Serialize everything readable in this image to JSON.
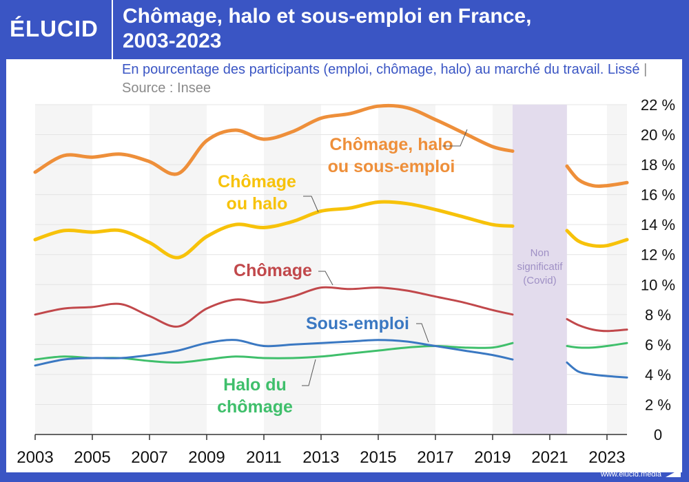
{
  "header": {
    "logo_text": "ÉLUCID",
    "title": "Chômage, halo et sous-emploi en France,\n2003-2023",
    "subtitle": "En pourcentage des participants (emploi, chômage, halo) au marché du travail. Lissé",
    "subtitle_sep": "|",
    "source": "Source : Insee"
  },
  "footer": {
    "url": "www.elucid.media"
  },
  "colors": {
    "brand_blue": "#3a55c4",
    "orange": "#ee8f3a",
    "yellow": "#f7c20a",
    "red": "#c1484b",
    "blue": "#3a78c2",
    "green": "#3fbf6b",
    "covid": "#e3dced",
    "covid_text": "#9f90c5"
  },
  "chart_data": {
    "type": "line",
    "x_range": [
      2003,
      2023.7
    ],
    "ylim": [
      0,
      22
    ],
    "y_ticks": [
      {
        "value": 0,
        "label": "0"
      },
      {
        "value": 2,
        "label": "2 %"
      },
      {
        "value": 4,
        "label": "4 %"
      },
      {
        "value": 6,
        "label": "6 %"
      },
      {
        "value": 8,
        "label": "8 %"
      },
      {
        "value": 10,
        "label": "10 %"
      },
      {
        "value": 12,
        "label": "12 %"
      },
      {
        "value": 14,
        "label": "14 %"
      },
      {
        "value": 16,
        "label": "16 %"
      },
      {
        "value": 18,
        "label": "18 %"
      },
      {
        "value": 20,
        "label": "20 %"
      },
      {
        "value": 22,
        "label": "22 %"
      }
    ],
    "x_ticks": [
      {
        "value": 2003,
        "label": "2003"
      },
      {
        "value": 2005,
        "label": "2005"
      },
      {
        "value": 2007,
        "label": "2007"
      },
      {
        "value": 2009,
        "label": "2009"
      },
      {
        "value": 2011,
        "label": "2011"
      },
      {
        "value": 2013,
        "label": "2013"
      },
      {
        "value": 2015,
        "label": "2015"
      },
      {
        "value": 2017,
        "label": "2017"
      },
      {
        "value": 2019,
        "label": "2019"
      },
      {
        "value": 2021,
        "label": "2021"
      },
      {
        "value": 2023,
        "label": "2023"
      }
    ],
    "grid": true,
    "covid_band": {
      "x_start": 2019.7,
      "x_end": 2021.6,
      "label_lines": [
        "Non",
        "significatif",
        "(Covid)"
      ]
    },
    "series": [
      {
        "name": "Chômage, halo ou sous-emploi",
        "label_lines": [
          "Chômage, halo",
          "ou sous-emploi"
        ],
        "color_key": "orange",
        "segments": [
          [
            [
              2003,
              17.5
            ],
            [
              2004,
              18.6
            ],
            [
              2005,
              18.5
            ],
            [
              2006,
              18.7
            ],
            [
              2007,
              18.2
            ],
            [
              2008,
              17.4
            ],
            [
              2009,
              19.6
            ],
            [
              2010,
              20.3
            ],
            [
              2011,
              19.7
            ],
            [
              2012,
              20.2
            ],
            [
              2013,
              21.1
            ],
            [
              2014,
              21.4
            ],
            [
              2015,
              21.9
            ],
            [
              2016,
              21.8
            ],
            [
              2017,
              21.0
            ],
            [
              2018,
              20.1
            ],
            [
              2019,
              19.2
            ],
            [
              2019.7,
              18.9
            ]
          ],
          [
            [
              2021.6,
              17.9
            ],
            [
              2022,
              17.0
            ],
            [
              2022.5,
              16.6
            ],
            [
              2023,
              16.6
            ],
            [
              2023.7,
              16.8
            ]
          ]
        ]
      },
      {
        "name": "Chômage ou halo",
        "label_lines": [
          "Chômage",
          "ou halo"
        ],
        "color_key": "yellow",
        "segments": [
          [
            [
              2003,
              13.0
            ],
            [
              2004,
              13.6
            ],
            [
              2005,
              13.5
            ],
            [
              2006,
              13.6
            ],
            [
              2007,
              12.8
            ],
            [
              2008,
              11.8
            ],
            [
              2009,
              13.2
            ],
            [
              2010,
              14.0
            ],
            [
              2011,
              13.8
            ],
            [
              2012,
              14.2
            ],
            [
              2013,
              14.9
            ],
            [
              2014,
              15.1
            ],
            [
              2015,
              15.5
            ],
            [
              2016,
              15.4
            ],
            [
              2017,
              15.0
            ],
            [
              2018,
              14.5
            ],
            [
              2019,
              14.0
            ],
            [
              2019.7,
              13.9
            ]
          ],
          [
            [
              2021.6,
              13.6
            ],
            [
              2022,
              12.9
            ],
            [
              2022.5,
              12.6
            ],
            [
              2023,
              12.6
            ],
            [
              2023.7,
              13.0
            ]
          ]
        ]
      },
      {
        "name": "Chômage",
        "label_lines": [
          "Chômage"
        ],
        "color_key": "red",
        "segments": [
          [
            [
              2003,
              8.0
            ],
            [
              2004,
              8.4
            ],
            [
              2005,
              8.5
            ],
            [
              2006,
              8.7
            ],
            [
              2007,
              7.9
            ],
            [
              2008,
              7.2
            ],
            [
              2009,
              8.4
            ],
            [
              2010,
              9.0
            ],
            [
              2011,
              8.8
            ],
            [
              2012,
              9.2
            ],
            [
              2013,
              9.8
            ],
            [
              2014,
              9.7
            ],
            [
              2015,
              9.8
            ],
            [
              2016,
              9.6
            ],
            [
              2017,
              9.2
            ],
            [
              2018,
              8.8
            ],
            [
              2019,
              8.3
            ],
            [
              2019.7,
              8.0
            ]
          ],
          [
            [
              2021.6,
              7.7
            ],
            [
              2022,
              7.3
            ],
            [
              2022.5,
              7.0
            ],
            [
              2023,
              6.9
            ],
            [
              2023.7,
              7.0
            ]
          ]
        ]
      },
      {
        "name": "Sous-emploi",
        "label_lines": [
          "Sous-emploi"
        ],
        "color_key": "blue",
        "segments": [
          [
            [
              2003,
              4.6
            ],
            [
              2004,
              5.0
            ],
            [
              2005,
              5.1
            ],
            [
              2006,
              5.1
            ],
            [
              2007,
              5.3
            ],
            [
              2008,
              5.6
            ],
            [
              2009,
              6.1
            ],
            [
              2010,
              6.3
            ],
            [
              2011,
              5.9
            ],
            [
              2012,
              6.0
            ],
            [
              2013,
              6.1
            ],
            [
              2014,
              6.2
            ],
            [
              2015,
              6.3
            ],
            [
              2016,
              6.2
            ],
            [
              2017,
              5.9
            ],
            [
              2018,
              5.6
            ],
            [
              2019,
              5.3
            ],
            [
              2019.7,
              5.0
            ]
          ],
          [
            [
              2021.6,
              4.8
            ],
            [
              2022,
              4.2
            ],
            [
              2022.5,
              4.0
            ],
            [
              2023,
              3.9
            ],
            [
              2023.7,
              3.8
            ]
          ]
        ]
      },
      {
        "name": "Halo du chômage",
        "label_lines": [
          "Halo du",
          "chômage"
        ],
        "color_key": "green",
        "segments": [
          [
            [
              2003,
              5.0
            ],
            [
              2004,
              5.2
            ],
            [
              2005,
              5.1
            ],
            [
              2006,
              5.1
            ],
            [
              2007,
              4.9
            ],
            [
              2008,
              4.8
            ],
            [
              2009,
              5.0
            ],
            [
              2010,
              5.2
            ],
            [
              2011,
              5.1
            ],
            [
              2012,
              5.1
            ],
            [
              2013,
              5.2
            ],
            [
              2014,
              5.4
            ],
            [
              2015,
              5.6
            ],
            [
              2016,
              5.8
            ],
            [
              2017,
              5.9
            ],
            [
              2018,
              5.8
            ],
            [
              2019,
              5.8
            ],
            [
              2019.7,
              6.1
            ]
          ],
          [
            [
              2021.6,
              5.9
            ],
            [
              2022,
              5.8
            ],
            [
              2022.5,
              5.8
            ],
            [
              2023,
              5.9
            ],
            [
              2023.7,
              6.1
            ]
          ]
        ]
      }
    ]
  }
}
